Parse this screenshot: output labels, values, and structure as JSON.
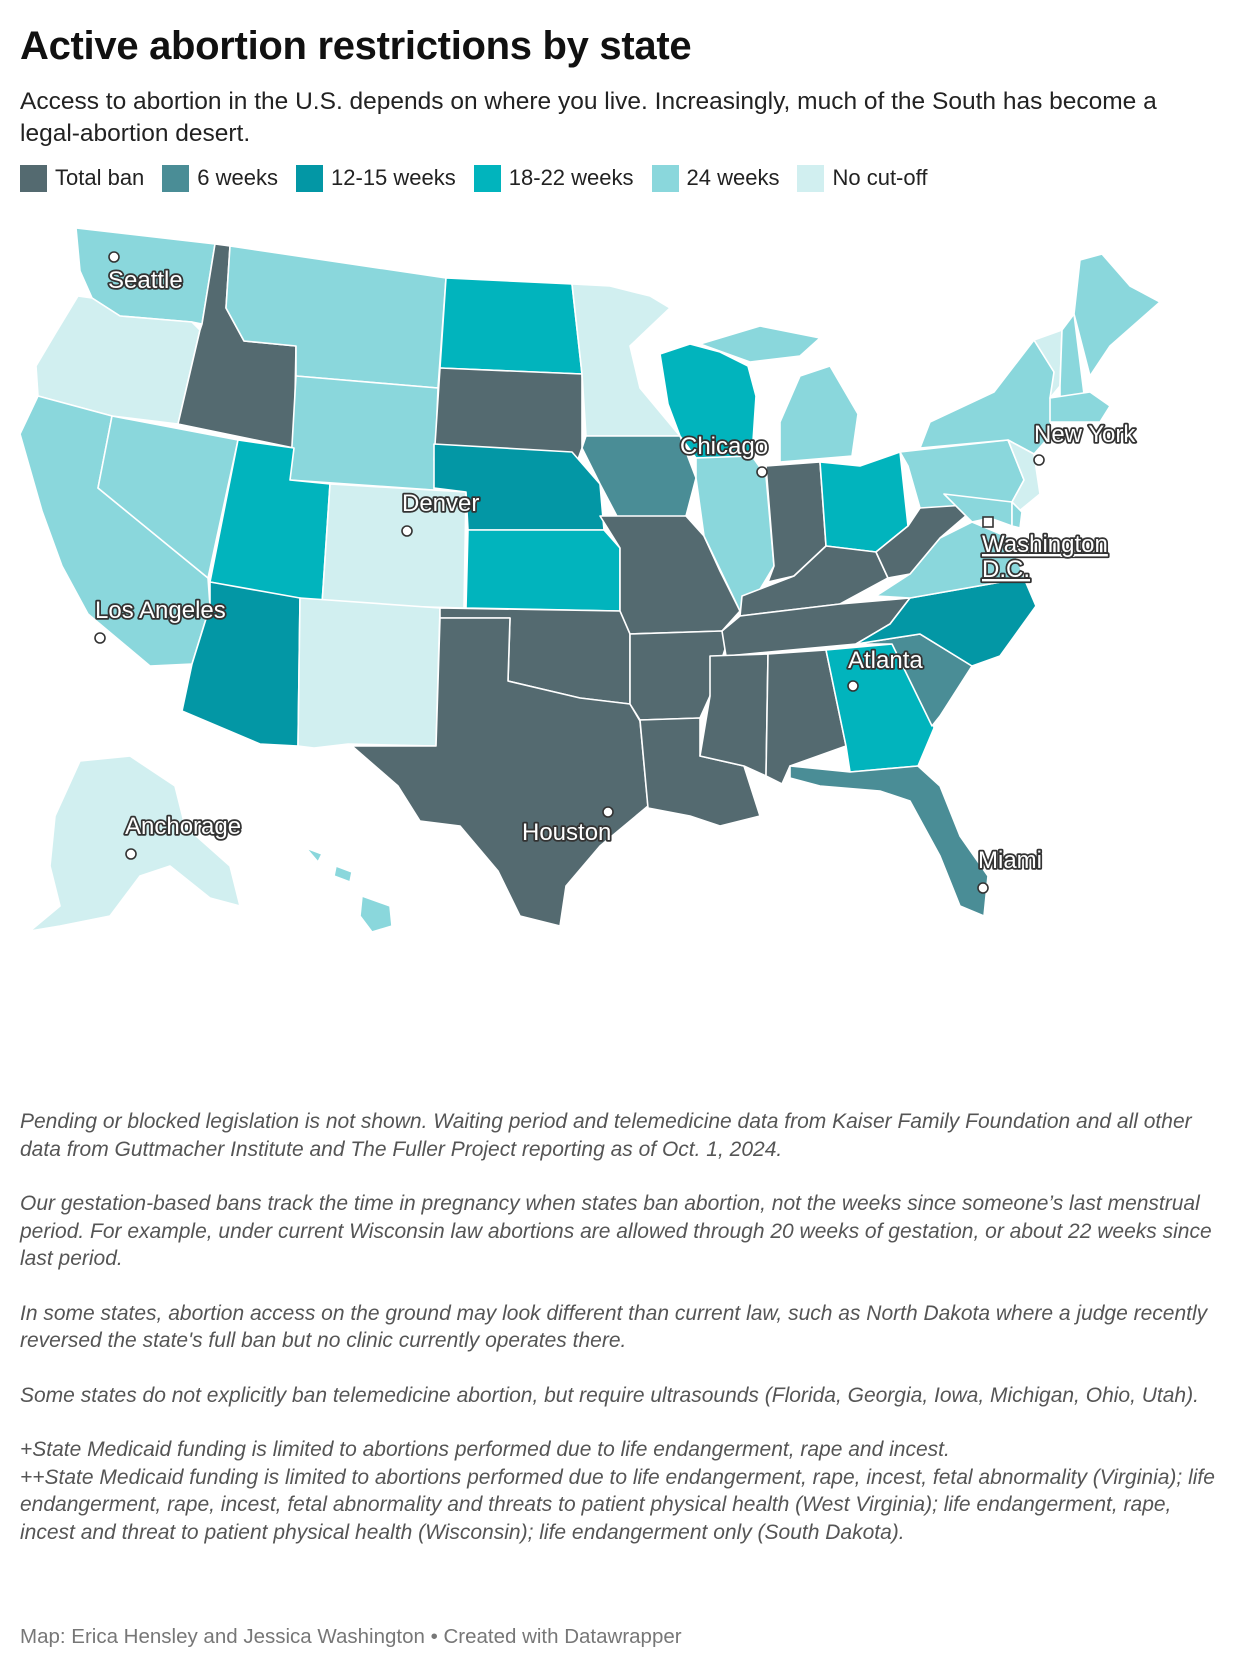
{
  "title": "Active abortion restrictions by state",
  "subtitle": "Access to abortion in the U.S. depends on where you live. Increasingly, much of the South has become a legal-abortion desert.",
  "legend": [
    {
      "label": "Total ban",
      "color": "#546a70"
    },
    {
      "label": "6 weeks",
      "color": "#4a8d96"
    },
    {
      "label": "12-15 weeks",
      "color": "#0397a5"
    },
    {
      "label": "18-22 weeks",
      "color": "#01b4bd"
    },
    {
      "label": "24 weeks",
      "color": "#8ad7dc"
    },
    {
      "label": "No cut-off",
      "color": "#d1eff0"
    }
  ],
  "cities": [
    {
      "name": "Seattle"
    },
    {
      "name": "Los Angeles"
    },
    {
      "name": "Denver"
    },
    {
      "name": "Chicago"
    },
    {
      "name": "New York"
    },
    {
      "name": "Washington D.C.",
      "line1": "Washington",
      "line2": "D.C."
    },
    {
      "name": "Atlanta"
    },
    {
      "name": "Houston"
    },
    {
      "name": "Miami"
    },
    {
      "name": "Anchorage"
    }
  ],
  "states": {
    "Washington": "24 weeks",
    "Oregon": "No cut-off",
    "California": "24 weeks",
    "Nevada": "24 weeks",
    "Idaho": "Total ban",
    "Montana": "24 weeks",
    "Wyoming": "24 weeks",
    "Utah": "18-22 weeks",
    "Arizona": "12-15 weeks",
    "Colorado": "No cut-off",
    "New Mexico": "No cut-off",
    "North Dakota": "18-22 weeks",
    "South Dakota": "Total ban",
    "Nebraska": "12-15 weeks",
    "Kansas": "18-22 weeks",
    "Oklahoma": "Total ban",
    "Texas": "Total ban",
    "Minnesota": "No cut-off",
    "Iowa": "6 weeks",
    "Missouri": "Total ban",
    "Arkansas": "Total ban",
    "Louisiana": "Total ban",
    "Wisconsin": "18-22 weeks",
    "Illinois": "24 weeks",
    "Michigan": "24 weeks",
    "Indiana": "Total ban",
    "Ohio": "18-22 weeks",
    "Kentucky": "Total ban",
    "Tennessee": "Total ban",
    "Mississippi": "Total ban",
    "Alabama": "Total ban",
    "Georgia": "18-22 weeks",
    "Florida": "6 weeks",
    "South Carolina": "6 weeks",
    "North Carolina": "12-15 weeks",
    "Virginia": "24 weeks",
    "West Virginia": "Total ban",
    "Pennsylvania": "24 weeks",
    "New York": "24 weeks",
    "Vermont": "No cut-off",
    "New Hampshire": "24 weeks",
    "Maine": "24 weeks",
    "Massachusetts": "24 weeks",
    "New Jersey": "No cut-off",
    "Maryland": "24 weeks",
    "Delaware": "24 weeks",
    "Alaska": "No cut-off",
    "Hawaii": "24 weeks"
  },
  "notes": [
    "Pending or blocked legislation is not shown. Waiting period and telemedicine data from Kaiser Family Foundation and all other data from Guttmacher Institute and The Fuller Project reporting as of Oct. 1, 2024.",
    "Our gestation-based bans track the time in pregnancy when states ban abortion, not the weeks since someone’s last menstrual period. For example, under current Wisconsin law abortions are allowed through 20 weeks of gestation, or about 22 weeks since last period.",
    "In some states, abortion access on the ground may look different than current law, such as North Dakota where a judge recently reversed the state's full ban but no clinic currently operates there.",
    "Some states do not explicitly ban telemedicine abortion, but require ultrasounds (Florida, Georgia, Iowa, Michigan, Ohio, Utah).",
    "+State Medicaid funding is limited to abortions performed due to life endangerment, rape and incest.",
    "++State Medicaid funding is limited to abortions performed due to life endangerment, rape, incest, fetal abnormality (Virginia); life endangerment, rape, incest, fetal abnormality and threats to patient physical health (West Virginia); life endangerment, rape, incest and threat to patient physical health (Wisconsin); life endangerment only (South Dakota)."
  ],
  "credit": "Map: Erica Hensley and Jessica Washington • Created with Datawrapper"
}
